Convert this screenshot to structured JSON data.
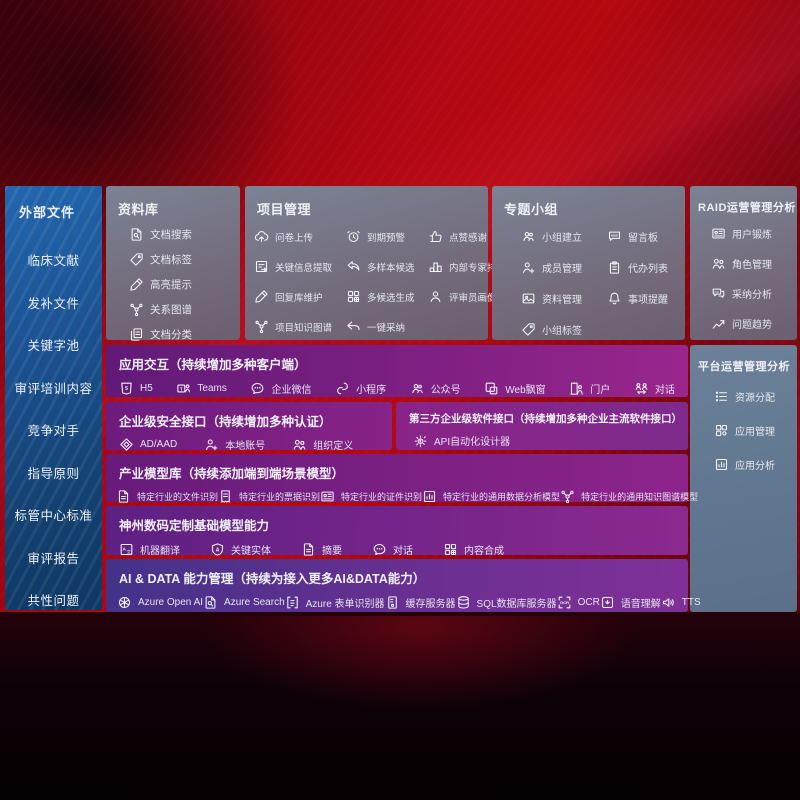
{
  "colors": {
    "background_red": "#b00712",
    "sidebar_blue": "#1a4f8e",
    "panel_slate": "#746c7d",
    "panel_steel": "#617690",
    "row_purple": "#7e2083",
    "row_indigo": "#433289",
    "text": "#eef0f6"
  },
  "sidebar": {
    "title": "外部文件",
    "items": [
      "临床文献",
      "发补文件",
      "关键字池",
      "审评培训内容",
      "竞争对手",
      "指导原则",
      "标管中心标准",
      "审评报告",
      "共性问题"
    ]
  },
  "panels": {
    "repository": {
      "title": "资料库",
      "items": [
        {
          "icon": "doc-search-icon",
          "label": "文档搜索"
        },
        {
          "icon": "doc-tag-icon",
          "label": "文档标签"
        },
        {
          "icon": "highlight-icon",
          "label": "高亮提示"
        },
        {
          "icon": "relation-graph-icon",
          "label": "关系图谱"
        },
        {
          "icon": "doc-category-icon",
          "label": "文档分类"
        }
      ]
    },
    "project": {
      "title": "项目管理",
      "items": [
        {
          "icon": "survey-upload-icon",
          "label": "问卷上传"
        },
        {
          "icon": "due-alarm-icon",
          "label": "到期预警"
        },
        {
          "icon": "thumbs-up-icon",
          "label": "点赞感谢"
        },
        {
          "icon": "info-extract-icon",
          "label": "关键信息提取"
        },
        {
          "icon": "multi-sample-icon",
          "label": "多样本候选"
        },
        {
          "icon": "expert-ranking-icon",
          "label": "内部专家排名"
        },
        {
          "icon": "reply-maintain-icon",
          "label": "回复库维护"
        },
        {
          "icon": "multi-generate-icon",
          "label": "多候选生成"
        },
        {
          "icon": "reviewer-portrait-icon",
          "label": "评审员画像"
        },
        {
          "icon": "project-knowledge-graph-icon",
          "label": "项目知识图谱"
        },
        {
          "icon": "one-click-adopt-icon",
          "label": "一键采纳"
        }
      ]
    },
    "group": {
      "title": "专题小组",
      "items": [
        {
          "icon": "team-create-icon",
          "label": "小组建立"
        },
        {
          "icon": "message-board-icon",
          "label": "留言板"
        },
        {
          "icon": "member-manage-icon",
          "label": "成员管理"
        },
        {
          "icon": "todo-list-icon",
          "label": "代办列表"
        },
        {
          "icon": "data-manage-icon",
          "label": "资料管理"
        },
        {
          "icon": "reminder-bell-icon",
          "label": "事项提醒"
        },
        {
          "icon": "group-tag-icon",
          "label": "小组标签"
        }
      ]
    },
    "raid": {
      "title": "RAID运营管理分析",
      "items": [
        {
          "icon": "user-card-icon",
          "label": "用户锻炼"
        },
        {
          "icon": "role-manage-icon",
          "label": "角色管理"
        },
        {
          "icon": "adoption-analysis-icon",
          "label": "采纳分析"
        },
        {
          "icon": "issue-trend-icon",
          "label": "问题趋势"
        }
      ]
    },
    "platform": {
      "title": "平台运营管理分析",
      "items": [
        {
          "icon": "resource-allocation-icon",
          "label": "资源分配"
        },
        {
          "icon": "app-manage-icon",
          "label": "应用管理"
        },
        {
          "icon": "app-analysis-icon",
          "label": "应用分析"
        }
      ]
    }
  },
  "rows": {
    "interaction": {
      "title": "应用交互（持续增加多种客户端）",
      "items": [
        {
          "icon": "h5-icon",
          "label": "H5"
        },
        {
          "icon": "teams-icon",
          "label": "Teams"
        },
        {
          "icon": "wecom-icon",
          "label": "企业微信"
        },
        {
          "icon": "miniprogram-icon",
          "label": "小程序"
        },
        {
          "icon": "official-account-icon",
          "label": "公众号"
        },
        {
          "icon": "web-popup-icon",
          "label": "Web飘窗"
        },
        {
          "icon": "portal-icon",
          "label": "门户"
        },
        {
          "icon": "dialog-icon",
          "label": "对话"
        }
      ]
    },
    "security": {
      "title": "企业级安全接口（持续增加多种认证）",
      "items": [
        {
          "icon": "ad-aad-icon",
          "label": "AD/AAD"
        },
        {
          "icon": "local-account-icon",
          "label": "本地账号"
        },
        {
          "icon": "org-define-icon",
          "label": "组织定义"
        }
      ]
    },
    "thirdparty": {
      "title": "第三方企业级软件接口（持续增加多种企业主流软件接口）",
      "items": [
        {
          "icon": "api-designer-icon",
          "label": "API自动化设计器"
        }
      ]
    },
    "models": {
      "title": "产业模型库（持续添加端到端场景模型）",
      "items": [
        {
          "icon": "file-recognition-icon",
          "label": "特定行业的文件识别"
        },
        {
          "icon": "invoice-recognition-icon",
          "label": "特定行业的票据识别"
        },
        {
          "icon": "cert-recognition-icon",
          "label": "特定行业的证件识别"
        },
        {
          "icon": "data-analysis-model-icon",
          "label": "特定行业的通用数据分析模型"
        },
        {
          "icon": "knowledge-graph-model-icon",
          "label": "特定行业的通用知识图谱模型"
        }
      ]
    },
    "base_models": {
      "title": "神州数码定制基础模型能力",
      "items": [
        {
          "icon": "machine-translation-icon",
          "label": "机器翻译"
        },
        {
          "icon": "key-entity-icon",
          "label": "关键实体"
        },
        {
          "icon": "summary-icon",
          "label": "摘要"
        },
        {
          "icon": "chat-icon",
          "label": "对话"
        },
        {
          "icon": "content-compose-icon",
          "label": "内容合成"
        }
      ]
    },
    "ai_data": {
      "title": "AI & DATA 能力管理（持续为接入更多AI&DATA能力）",
      "items": [
        {
          "icon": "azure-openai-icon",
          "label": "Azure Open AI"
        },
        {
          "icon": "azure-search-icon",
          "label": "Azure Search"
        },
        {
          "icon": "form-recognizer-icon",
          "label": "Azure 表单识别器"
        },
        {
          "icon": "cache-server-icon",
          "label": "缓存服务器"
        },
        {
          "icon": "sql-server-icon",
          "label": "SQL数据库服务器"
        },
        {
          "icon": "ocr-icon",
          "label": "OCR"
        },
        {
          "icon": "speech-icon",
          "label": "语音理解"
        },
        {
          "icon": "tts-icon",
          "label": "TTS"
        }
      ]
    }
  }
}
